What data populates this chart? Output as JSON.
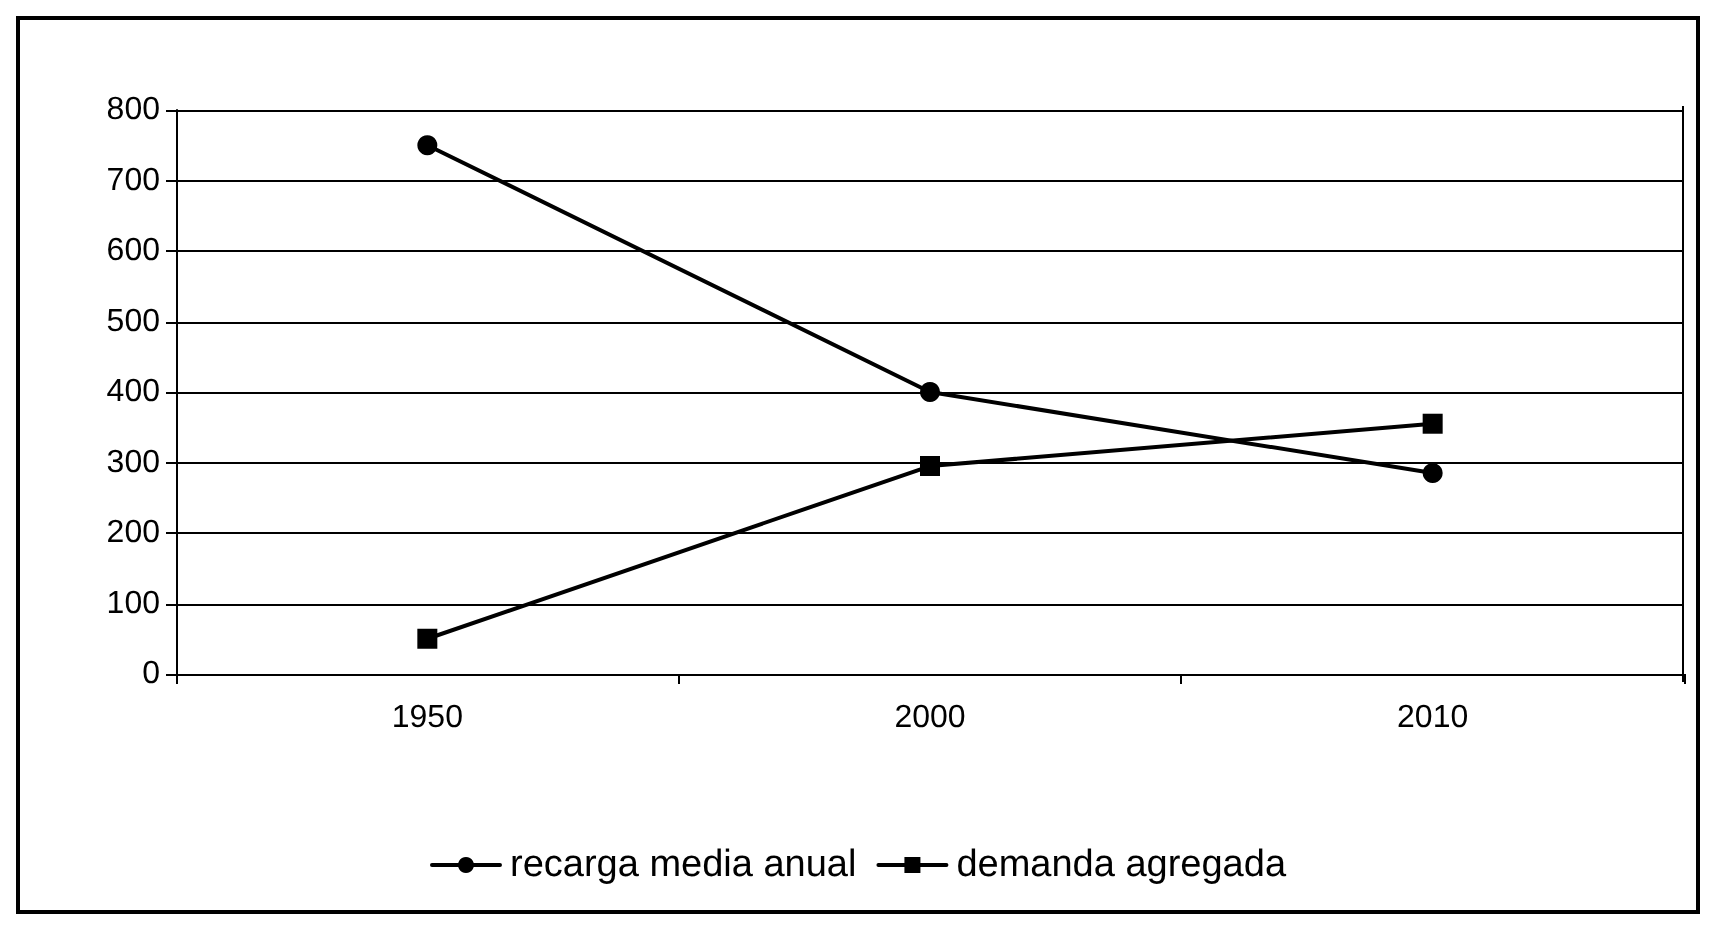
{
  "chart_data": {
    "type": "line",
    "categories": [
      "1950",
      "2000",
      "2010"
    ],
    "series": [
      {
        "name": "recarga media anual",
        "color": "#000000",
        "marker": "circle",
        "values": [
          750,
          400,
          285
        ]
      },
      {
        "name": "demanda agregada",
        "color": "#000000",
        "marker": "square",
        "values": [
          50,
          295,
          355
        ]
      }
    ],
    "ylim": [
      0,
      800
    ],
    "yticks": [
      0,
      100,
      200,
      300,
      400,
      500,
      600,
      700,
      800
    ],
    "grid": "y",
    "legend": "bottom",
    "line_style": "solid"
  }
}
